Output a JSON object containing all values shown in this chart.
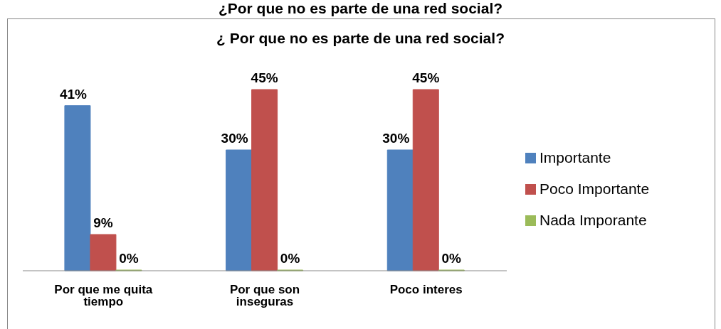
{
  "chart_data": {
    "type": "bar",
    "title": "¿Por que no es  parte de una red social?",
    "subtitle": "¿ Por que no es  parte de una red social?",
    "categories": [
      "Por que me quita tiempo",
      "Por que son inseguras",
      "Poco interes"
    ],
    "series": [
      {
        "name": "Importante",
        "color": "#4f81bd",
        "values": [
          41,
          30,
          30
        ],
        "value_labels": [
          "41%",
          "30%",
          "30%"
        ]
      },
      {
        "name": "Poco Importante",
        "color": "#c0504d",
        "values": [
          9,
          45,
          45
        ],
        "value_labels": [
          "9%",
          "45%",
          "45%"
        ]
      },
      {
        "name": "Nada Imporante",
        "color": "#9bbb59",
        "values": [
          0,
          0,
          0
        ],
        "value_labels": [
          "0%",
          "0%",
          "0%"
        ]
      }
    ],
    "data_labels": true,
    "legend": "right",
    "grid": false
  }
}
